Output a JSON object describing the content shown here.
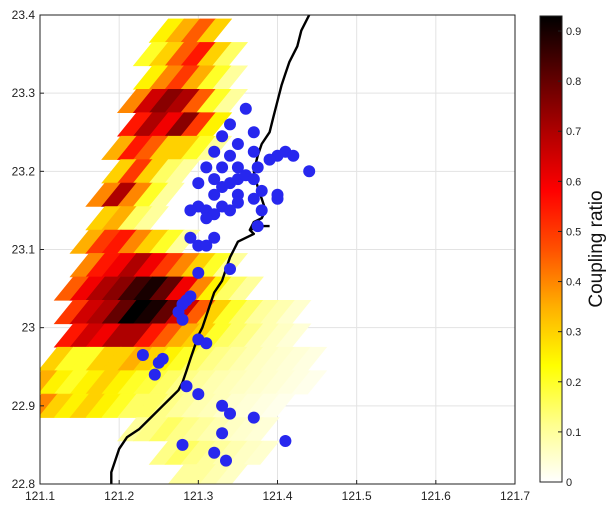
{
  "chart_data": {
    "type": "heatmap",
    "title": "",
    "xlabel": "",
    "ylabel": "",
    "xlim": [
      121.1,
      121.7
    ],
    "ylim": [
      22.8,
      23.4
    ],
    "grid": true,
    "x_ticks": [
      "121.1",
      "121.2",
      "121.3",
      "121.4",
      "121.5",
      "121.6",
      "121.7"
    ],
    "y_ticks": [
      "22.8",
      "22.9",
      "23",
      "23.1",
      "23.2",
      "23.3",
      "23.4"
    ],
    "colorbar": {
      "label": "Coupling ratio",
      "range": [
        0,
        0.93
      ],
      "ticks": [
        "0",
        "0.1",
        "0.2",
        "0.3",
        "0.4",
        "0.5",
        "0.6",
        "0.7",
        "0.8",
        "0.9"
      ],
      "colormap": "hot-reversed",
      "stops": [
        "#ffffff",
        "#ffff8c",
        "#ffff00",
        "#ffb000",
        "#ff5000",
        "#ff0000",
        "#b00000",
        "#5a0000",
        "#000000"
      ]
    },
    "coupling_cells": [
      [
        121.26,
        23.38,
        0.25
      ],
      [
        121.28,
        23.38,
        0.35
      ],
      [
        121.3,
        23.38,
        0.45
      ],
      [
        121.32,
        23.38,
        0.3
      ],
      [
        121.24,
        23.35,
        0.2
      ],
      [
        121.26,
        23.35,
        0.3
      ],
      [
        121.28,
        23.35,
        0.45
      ],
      [
        121.3,
        23.35,
        0.55
      ],
      [
        121.32,
        23.35,
        0.3
      ],
      [
        121.34,
        23.35,
        0.15
      ],
      [
        121.24,
        23.32,
        0.25
      ],
      [
        121.26,
        23.32,
        0.4
      ],
      [
        121.28,
        23.32,
        0.5
      ],
      [
        121.3,
        23.32,
        0.35
      ],
      [
        121.32,
        23.32,
        0.2
      ],
      [
        121.34,
        23.32,
        0.1
      ],
      [
        121.22,
        23.29,
        0.4
      ],
      [
        121.24,
        23.29,
        0.65
      ],
      [
        121.26,
        23.29,
        0.75
      ],
      [
        121.28,
        23.29,
        0.7
      ],
      [
        121.3,
        23.29,
        0.45
      ],
      [
        121.32,
        23.29,
        0.2
      ],
      [
        121.34,
        23.29,
        0.1
      ],
      [
        121.22,
        23.26,
        0.55
      ],
      [
        121.24,
        23.26,
        0.7
      ],
      [
        121.26,
        23.26,
        0.6
      ],
      [
        121.28,
        23.26,
        0.75
      ],
      [
        121.3,
        23.26,
        0.5
      ],
      [
        121.32,
        23.26,
        0.25
      ],
      [
        121.2,
        23.23,
        0.35
      ],
      [
        121.22,
        23.23,
        0.55
      ],
      [
        121.24,
        23.23,
        0.45
      ],
      [
        121.26,
        23.23,
        0.3
      ],
      [
        121.28,
        23.23,
        0.3
      ],
      [
        121.3,
        23.23,
        0.2
      ],
      [
        121.32,
        23.23,
        0.1
      ],
      [
        121.2,
        23.2,
        0.3
      ],
      [
        121.22,
        23.2,
        0.5
      ],
      [
        121.24,
        23.2,
        0.3
      ],
      [
        121.26,
        23.2,
        0.15
      ],
      [
        121.28,
        23.2,
        0.1
      ],
      [
        121.18,
        23.17,
        0.4
      ],
      [
        121.2,
        23.17,
        0.7
      ],
      [
        121.22,
        23.17,
        0.4
      ],
      [
        121.24,
        23.17,
        0.2
      ],
      [
        121.26,
        23.17,
        0.1
      ],
      [
        121.18,
        23.14,
        0.3
      ],
      [
        121.2,
        23.14,
        0.35
      ],
      [
        121.22,
        23.14,
        0.15
      ],
      [
        121.24,
        23.14,
        0.1
      ],
      [
        121.16,
        23.11,
        0.35
      ],
      [
        121.18,
        23.11,
        0.5
      ],
      [
        121.2,
        23.11,
        0.55
      ],
      [
        121.22,
        23.11,
        0.4
      ],
      [
        121.24,
        23.11,
        0.3
      ],
      [
        121.26,
        23.11,
        0.2
      ],
      [
        121.28,
        23.11,
        0.1
      ],
      [
        121.16,
        23.08,
        0.4
      ],
      [
        121.18,
        23.08,
        0.55
      ],
      [
        121.2,
        23.08,
        0.6
      ],
      [
        121.22,
        23.08,
        0.7
      ],
      [
        121.24,
        23.08,
        0.6
      ],
      [
        121.26,
        23.08,
        0.5
      ],
      [
        121.28,
        23.08,
        0.4
      ],
      [
        121.3,
        23.08,
        0.3
      ],
      [
        121.32,
        23.08,
        0.2
      ],
      [
        121.34,
        23.08,
        0.1
      ],
      [
        121.14,
        23.05,
        0.45
      ],
      [
        121.16,
        23.05,
        0.6
      ],
      [
        121.18,
        23.05,
        0.7
      ],
      [
        121.2,
        23.05,
        0.75
      ],
      [
        121.22,
        23.05,
        0.85
      ],
      [
        121.24,
        23.05,
        0.9
      ],
      [
        121.26,
        23.05,
        0.8
      ],
      [
        121.28,
        23.05,
        0.6
      ],
      [
        121.3,
        23.05,
        0.4
      ],
      [
        121.32,
        23.05,
        0.25
      ],
      [
        121.34,
        23.05,
        0.15
      ],
      [
        121.36,
        23.05,
        0.1
      ],
      [
        121.14,
        23.02,
        0.5
      ],
      [
        121.16,
        23.02,
        0.65
      ],
      [
        121.18,
        23.02,
        0.7
      ],
      [
        121.2,
        23.02,
        0.8
      ],
      [
        121.22,
        23.02,
        0.93
      ],
      [
        121.24,
        23.02,
        0.9
      ],
      [
        121.26,
        23.02,
        0.8
      ],
      [
        121.28,
        23.02,
        0.65
      ],
      [
        121.3,
        23.02,
        0.45
      ],
      [
        121.32,
        23.02,
        0.3
      ],
      [
        121.34,
        23.02,
        0.2
      ],
      [
        121.36,
        23.02,
        0.15
      ],
      [
        121.38,
        23.02,
        0.1
      ],
      [
        121.4,
        23.02,
        0.08
      ],
      [
        121.42,
        23.02,
        0.05
      ],
      [
        121.14,
        22.99,
        0.55
      ],
      [
        121.16,
        22.99,
        0.65
      ],
      [
        121.18,
        22.99,
        0.6
      ],
      [
        121.2,
        22.99,
        0.7
      ],
      [
        121.22,
        22.99,
        0.7
      ],
      [
        121.24,
        22.99,
        0.55
      ],
      [
        121.26,
        22.99,
        0.45
      ],
      [
        121.28,
        22.99,
        0.35
      ],
      [
        121.3,
        22.99,
        0.3
      ],
      [
        121.32,
        22.99,
        0.2
      ],
      [
        121.34,
        22.99,
        0.15
      ],
      [
        121.36,
        22.99,
        0.12
      ],
      [
        121.38,
        22.99,
        0.08
      ],
      [
        121.4,
        22.99,
        0.06
      ],
      [
        121.42,
        22.99,
        0.04
      ],
      [
        121.12,
        22.96,
        0.3
      ],
      [
        121.14,
        22.96,
        0.2
      ],
      [
        121.16,
        22.96,
        0.2
      ],
      [
        121.18,
        22.96,
        0.3
      ],
      [
        121.2,
        22.96,
        0.3
      ],
      [
        121.22,
        22.96,
        0.35
      ],
      [
        121.24,
        22.96,
        0.3
      ],
      [
        121.26,
        22.96,
        0.25
      ],
      [
        121.28,
        22.96,
        0.2
      ],
      [
        121.3,
        22.96,
        0.15
      ],
      [
        121.32,
        22.96,
        0.12
      ],
      [
        121.34,
        22.96,
        0.1
      ],
      [
        121.36,
        22.96,
        0.08
      ],
      [
        121.38,
        22.96,
        0.06
      ],
      [
        121.4,
        22.96,
        0.05
      ],
      [
        121.42,
        22.96,
        0.04
      ],
      [
        121.44,
        22.96,
        0.03
      ],
      [
        121.1,
        22.93,
        0.35
      ],
      [
        121.12,
        22.93,
        0.25
      ],
      [
        121.14,
        22.93,
        0.2
      ],
      [
        121.16,
        22.93,
        0.25
      ],
      [
        121.18,
        22.93,
        0.3
      ],
      [
        121.2,
        22.93,
        0.25
      ],
      [
        121.22,
        22.93,
        0.2
      ],
      [
        121.24,
        22.93,
        0.18
      ],
      [
        121.26,
        22.93,
        0.15
      ],
      [
        121.28,
        22.93,
        0.12
      ],
      [
        121.3,
        22.93,
        0.1
      ],
      [
        121.32,
        22.93,
        0.08
      ],
      [
        121.34,
        22.93,
        0.07
      ],
      [
        121.36,
        22.93,
        0.06
      ],
      [
        121.38,
        22.93,
        0.05
      ],
      [
        121.4,
        22.93,
        0.04
      ],
      [
        121.42,
        22.93,
        0.03
      ],
      [
        121.44,
        22.93,
        0.02
      ],
      [
        121.1,
        22.9,
        0.4
      ],
      [
        121.12,
        22.9,
        0.3
      ],
      [
        121.14,
        22.9,
        0.25
      ],
      [
        121.16,
        22.9,
        0.3
      ],
      [
        121.18,
        22.9,
        0.25
      ],
      [
        121.2,
        22.9,
        0.2
      ],
      [
        121.22,
        22.9,
        0.15
      ],
      [
        121.24,
        22.9,
        0.15
      ],
      [
        121.26,
        22.9,
        0.12
      ],
      [
        121.28,
        22.9,
        0.1
      ],
      [
        121.3,
        22.9,
        0.08
      ],
      [
        121.32,
        22.9,
        0.07
      ],
      [
        121.34,
        22.9,
        0.05
      ],
      [
        121.36,
        22.9,
        0.04
      ],
      [
        121.38,
        22.9,
        0.03
      ],
      [
        121.4,
        22.9,
        0.02
      ],
      [
        121.22,
        22.87,
        0.1
      ],
      [
        121.24,
        22.87,
        0.12
      ],
      [
        121.26,
        22.87,
        0.15
      ],
      [
        121.28,
        22.87,
        0.12
      ],
      [
        121.3,
        22.87,
        0.1
      ],
      [
        121.32,
        22.87,
        0.08
      ],
      [
        121.34,
        22.87,
        0.06
      ],
      [
        121.36,
        22.87,
        0.05
      ],
      [
        121.38,
        22.87,
        0.04
      ],
      [
        121.26,
        22.84,
        0.12
      ],
      [
        121.28,
        22.84,
        0.15
      ],
      [
        121.3,
        22.84,
        0.12
      ],
      [
        121.32,
        22.84,
        0.1
      ],
      [
        121.34,
        22.84,
        0.08
      ],
      [
        121.36,
        22.84,
        0.06
      ],
      [
        121.38,
        22.84,
        0.05
      ],
      [
        121.28,
        22.81,
        0.1
      ],
      [
        121.3,
        22.81,
        0.1
      ],
      [
        121.32,
        22.81,
        0.08
      ],
      [
        121.34,
        22.81,
        0.06
      ]
    ],
    "earthquakes": [
      [
        121.36,
        23.28
      ],
      [
        121.34,
        23.26
      ],
      [
        121.37,
        23.25
      ],
      [
        121.33,
        23.245
      ],
      [
        121.35,
        23.235
      ],
      [
        121.32,
        23.225
      ],
      [
        121.34,
        23.22
      ],
      [
        121.37,
        23.225
      ],
      [
        121.4,
        23.22
      ],
      [
        121.39,
        23.215
      ],
      [
        121.31,
        23.205
      ],
      [
        121.33,
        23.205
      ],
      [
        121.35,
        23.205
      ],
      [
        121.375,
        23.205
      ],
      [
        121.41,
        23.225
      ],
      [
        121.42,
        23.22
      ],
      [
        121.44,
        23.2
      ],
      [
        121.32,
        23.19
      ],
      [
        121.35,
        23.19
      ],
      [
        121.36,
        23.195
      ],
      [
        121.37,
        23.19
      ],
      [
        121.3,
        23.185
      ],
      [
        121.33,
        23.18
      ],
      [
        121.34,
        23.185
      ],
      [
        121.38,
        23.175
      ],
      [
        121.32,
        23.17
      ],
      [
        121.35,
        23.17
      ],
      [
        121.37,
        23.165
      ],
      [
        121.4,
        23.165
      ],
      [
        121.4,
        23.17
      ],
      [
        121.3,
        23.155
      ],
      [
        121.29,
        23.15
      ],
      [
        121.31,
        23.15
      ],
      [
        121.33,
        23.155
      ],
      [
        121.35,
        23.16
      ],
      [
        121.34,
        23.15
      ],
      [
        121.32,
        23.145
      ],
      [
        121.31,
        23.14
      ],
      [
        121.38,
        23.15
      ],
      [
        121.375,
        23.13
      ],
      [
        121.32,
        23.115
      ],
      [
        121.3,
        23.105
      ],
      [
        121.29,
        23.115
      ],
      [
        121.31,
        23.105
      ],
      [
        121.34,
        23.075
      ],
      [
        121.3,
        23.07
      ],
      [
        121.29,
        23.04
      ],
      [
        121.285,
        23.035
      ],
      [
        121.28,
        23.03
      ],
      [
        121.275,
        23.02
      ],
      [
        121.28,
        23.01
      ],
      [
        121.3,
        22.985
      ],
      [
        121.31,
        22.98
      ],
      [
        121.23,
        22.965
      ],
      [
        121.255,
        22.96
      ],
      [
        121.25,
        22.955
      ],
      [
        121.245,
        22.94
      ],
      [
        121.285,
        22.925
      ],
      [
        121.3,
        22.915
      ],
      [
        121.33,
        22.9
      ],
      [
        121.34,
        22.89
      ],
      [
        121.37,
        22.885
      ],
      [
        121.33,
        22.865
      ],
      [
        121.41,
        22.855
      ],
      [
        121.28,
        22.85
      ],
      [
        121.32,
        22.84
      ],
      [
        121.335,
        22.83
      ]
    ],
    "coastline": [
      [
        121.44,
        23.4
      ],
      [
        121.43,
        23.38
      ],
      [
        121.425,
        23.36
      ],
      [
        121.415,
        23.34
      ],
      [
        121.41,
        23.325
      ],
      [
        121.405,
        23.31
      ],
      [
        121.4,
        23.29
      ],
      [
        121.395,
        23.27
      ],
      [
        121.39,
        23.25
      ],
      [
        121.38,
        23.235
      ],
      [
        121.375,
        23.22
      ],
      [
        121.37,
        23.2
      ],
      [
        121.375,
        23.18
      ],
      [
        121.38,
        23.165
      ],
      [
        121.385,
        23.15
      ],
      [
        121.38,
        23.14
      ],
      [
        121.37,
        23.135
      ],
      [
        121.365,
        23.125
      ],
      [
        121.37,
        23.12
      ],
      [
        121.36,
        23.115
      ],
      [
        121.35,
        23.11
      ],
      [
        121.345,
        23.1
      ],
      [
        121.34,
        23.09
      ],
      [
        121.335,
        23.075
      ],
      [
        121.33,
        23.06
      ],
      [
        121.32,
        23.045
      ],
      [
        121.315,
        23.03
      ],
      [
        121.31,
        23.015
      ],
      [
        121.305,
        23.0
      ],
      [
        121.3,
        22.99
      ],
      [
        121.295,
        22.975
      ],
      [
        121.29,
        22.96
      ],
      [
        121.285,
        22.945
      ],
      [
        121.28,
        22.93
      ],
      [
        121.275,
        22.92
      ],
      [
        121.265,
        22.91
      ],
      [
        121.255,
        22.9
      ],
      [
        121.24,
        22.885
      ],
      [
        121.225,
        22.87
      ],
      [
        121.21,
        22.86
      ],
      [
        121.2,
        22.845
      ],
      [
        121.195,
        22.83
      ],
      [
        121.19,
        22.815
      ],
      [
        121.19,
        22.8
      ]
    ],
    "coastline_spur": [
      [
        121.365,
        23.125
      ],
      [
        121.38,
        23.13
      ],
      [
        121.39,
        23.13
      ]
    ],
    "colors": {
      "eq_marker": "#2727ee",
      "coastline": "#000000",
      "grid": "#e3e3e3",
      "axis": "#222222"
    }
  }
}
